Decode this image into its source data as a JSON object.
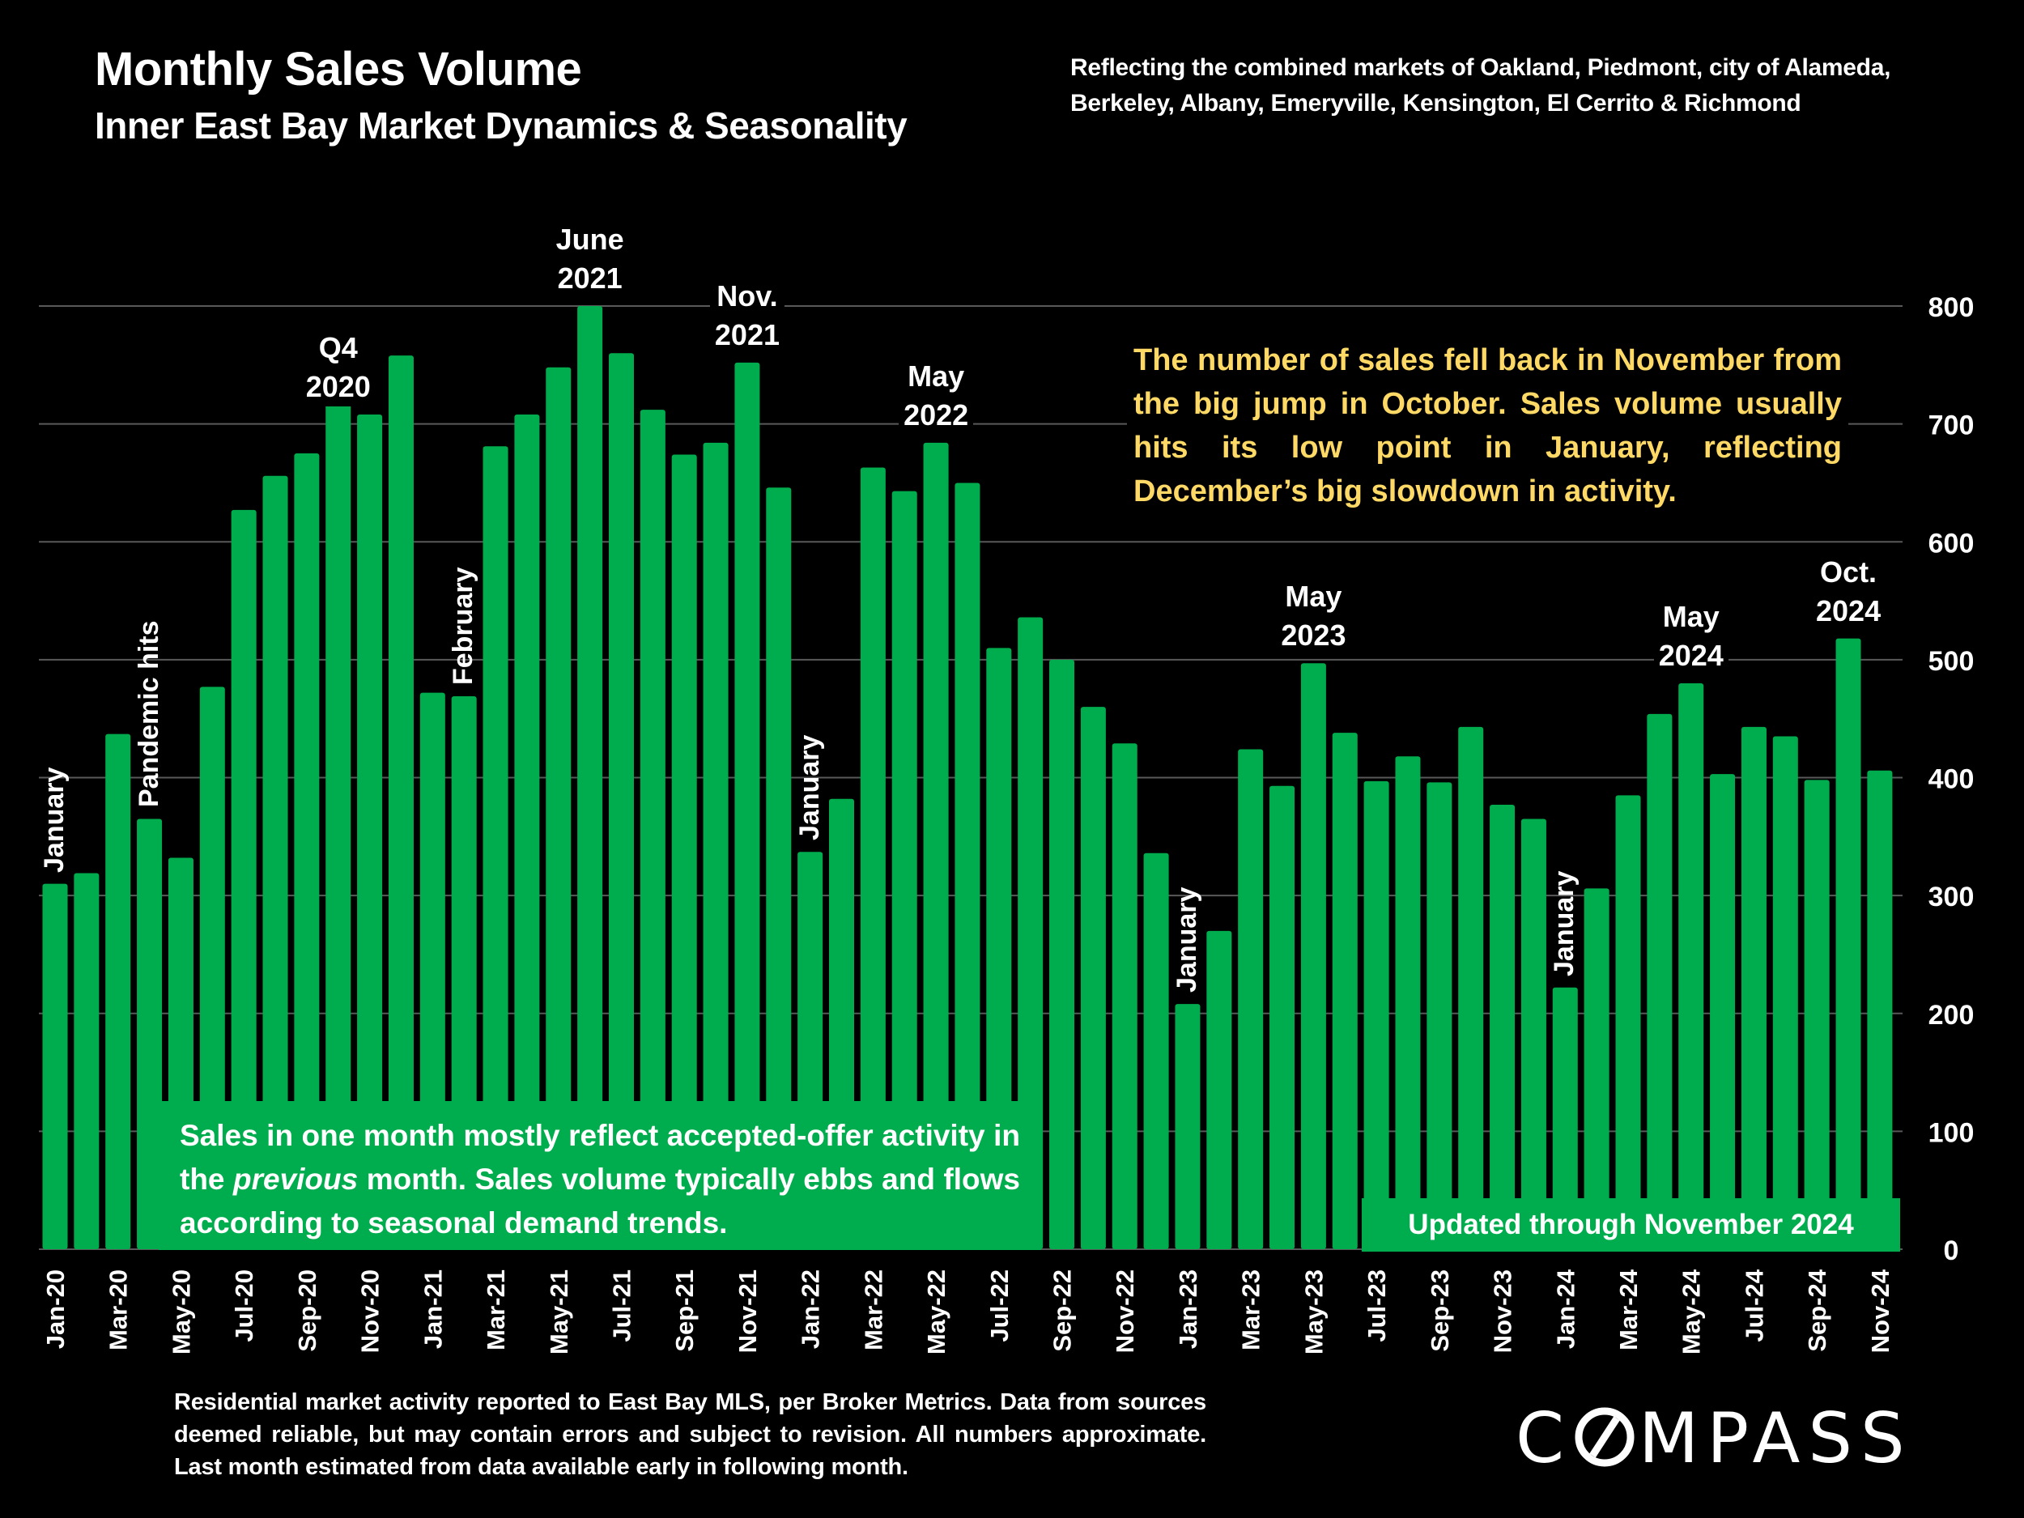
{
  "header": {
    "title": "Monthly Sales Volume",
    "subtitle": "Inner East Bay Market Dynamics & Seasonality",
    "scope_line1": "Reflecting the combined markets of Oakland, Piedmont, city of Alameda,",
    "scope_line2": "Berkeley, Albany, Emeryville, Kensington, El Cerrito & Richmond"
  },
  "notes": {
    "yellow": "The number of sales fell back in November from the big jump in October. Sales volume usually hits its low point in January, reflecting December’s big slowdown in activity.",
    "green_part1": "Sales in one month mostly reflect accepted-offer activity in the ",
    "green_italic": "previous",
    "green_part2": " month. Sales volume typically ebbs and flows according to seasonal demand trends.",
    "updated": "Updated through November 2024"
  },
  "footer": {
    "disclaimer": "Residential market activity reported to East Bay MLS, per Broker Metrics. Data from sources deemed reliable, but may contain errors and subject to revision. All numbers approximate. Last month estimated from data available early in following month.",
    "logo": "COMPASS"
  },
  "colors": {
    "bar": "#00AD4E",
    "annotation_yellow": "#FFD966",
    "grid": "#595959",
    "background": "#000000"
  },
  "chart_data": {
    "type": "bar",
    "title": "Monthly Sales Volume",
    "subtitle": "Inner East Bay Market Dynamics & Seasonality",
    "xlabel": "",
    "ylabel": "",
    "ylim": [
      0,
      800
    ],
    "yticks": [
      0,
      100,
      200,
      300,
      400,
      500,
      600,
      700,
      800
    ],
    "y_axis_side": "right",
    "grid": true,
    "categories": [
      "Jan-20",
      "Feb-20",
      "Mar-20",
      "Apr-20",
      "May-20",
      "Jun-20",
      "Jul-20",
      "Aug-20",
      "Sep-20",
      "Oct-20",
      "Nov-20",
      "Dec-20",
      "Jan-21",
      "Feb-21",
      "Mar-21",
      "Apr-21",
      "May-21",
      "Jun-21",
      "Jul-21",
      "Aug-21",
      "Sep-21",
      "Oct-21",
      "Nov-21",
      "Dec-21",
      "Jan-22",
      "Feb-22",
      "Mar-22",
      "Apr-22",
      "May-22",
      "Jun-22",
      "Jul-22",
      "Aug-22",
      "Sep-22",
      "Oct-22",
      "Nov-22",
      "Dec-22",
      "Jan-23",
      "Feb-23",
      "Mar-23",
      "Apr-23",
      "May-23",
      "Jun-23",
      "Jul-23",
      "Aug-23",
      "Sep-23",
      "Oct-23",
      "Nov-23",
      "Dec-23",
      "Jan-24",
      "Feb-24",
      "Mar-24",
      "Apr-24",
      "May-24",
      "Jun-24",
      "Jul-24",
      "Aug-24",
      "Sep-24",
      "Oct-24",
      "Nov-24"
    ],
    "tick_labels_shown": [
      "Jan-20",
      "Mar-20",
      "May-20",
      "Jul-20",
      "Sep-20",
      "Nov-20",
      "Jan-21",
      "Mar-21",
      "May-21",
      "Jul-21",
      "Sep-21",
      "Nov-21",
      "Jan-22",
      "Mar-22",
      "May-22",
      "Jul-22",
      "Sep-22",
      "Nov-22",
      "Jan-23",
      "Mar-23",
      "May-23",
      "Jul-23",
      "Sep-23",
      "Nov-23",
      "Jan-24",
      "Mar-24",
      "May-24",
      "Jul-24",
      "Sep-24",
      "Nov-24"
    ],
    "values": [
      310,
      319,
      437,
      365,
      332,
      477,
      627,
      656,
      675,
      745,
      708,
      758,
      472,
      469,
      681,
      708,
      748,
      800,
      760,
      712,
      674,
      684,
      752,
      646,
      337,
      382,
      663,
      643,
      684,
      650,
      510,
      536,
      500,
      460,
      429,
      336,
      208,
      270,
      424,
      393,
      497,
      438,
      397,
      418,
      396,
      443,
      377,
      365,
      222,
      306,
      385,
      454,
      480,
      403,
      443,
      435,
      398,
      518,
      406
    ],
    "annotations": [
      {
        "text": "January",
        "at": "Jan-20",
        "orientation": "vertical"
      },
      {
        "text": "Pandemic hits",
        "at": "Apr-20",
        "orientation": "vertical"
      },
      {
        "text": "Q4\n2020",
        "at": "Nov-20",
        "orientation": "horizontal"
      },
      {
        "text": "February",
        "at": "Feb-21",
        "orientation": "vertical"
      },
      {
        "text": "June\n2021",
        "at": "Jun-21",
        "orientation": "horizontal"
      },
      {
        "text": "Nov.\n2021",
        "at": "Nov-21",
        "orientation": "horizontal"
      },
      {
        "text": "January",
        "at": "Jan-22",
        "orientation": "vertical"
      },
      {
        "text": "May\n2022",
        "at": "May-22",
        "orientation": "horizontal"
      },
      {
        "text": "January",
        "at": "Jan-23",
        "orientation": "vertical"
      },
      {
        "text": "May\n2023",
        "at": "May-23",
        "orientation": "horizontal"
      },
      {
        "text": "January",
        "at": "Jan-24",
        "orientation": "vertical"
      },
      {
        "text": "May\n2024",
        "at": "May-24",
        "orientation": "horizontal"
      },
      {
        "text": "Oct.\n2024",
        "at": "Oct-24",
        "orientation": "horizontal"
      }
    ]
  }
}
